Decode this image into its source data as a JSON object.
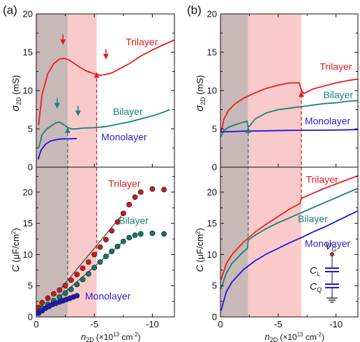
{
  "panels": [
    {
      "label": "(a)",
      "x_axis": {
        "label_main": "n",
        "label_sub": "2D",
        "label_units_prefix": "(×10",
        "label_units_exp": "13",
        "label_units_suffix": " cm",
        "label_units_exp2": "-2",
        "label_units_close": ")",
        "ticks": [
          0,
          -5,
          -10
        ],
        "tick_labels": [
          "0",
          "-5",
          "-10"
        ],
        "range": [
          0,
          -11.9
        ]
      },
      "shaded_regions": [
        {
          "x": [
            0,
            -2.7
          ],
          "color": "#c8b8b8"
        },
        {
          "x": [
            -2.7,
            -5.2
          ],
          "color": "#f9caca"
        }
      ],
      "top": {
        "y_axis": {
          "label_main": "σ",
          "label_sub": "2D",
          "label_units": " (mS)",
          "range": [
            0,
            20
          ],
          "ticks": [
            0,
            5,
            10,
            15,
            20
          ],
          "tick_labels": [
            "0",
            "5",
            "10",
            "15",
            "20"
          ]
        },
        "curve_labels": [
          {
            "text": "Trilayer",
            "color": "#dd1f1f",
            "x": -7.7,
            "y": 15.9
          },
          {
            "text": "Bilayer",
            "color": "#1a8078",
            "x": -6.6,
            "y": 6.8
          },
          {
            "text": "Monolayer",
            "color": "#2c1fcf",
            "x": -5.6,
            "y": 3.5
          }
        ]
      },
      "bottom": {
        "y_axis": {
          "label_main": "C",
          "label_units_prefix": " (μF/cm",
          "label_units_exp": "2",
          "label_units_close": ")",
          "range": [
            0,
            24
          ],
          "ticks": [
            0,
            5,
            10,
            15,
            20
          ],
          "tick_labels": [
            "0",
            "5",
            "10",
            "15",
            "20"
          ]
        },
        "curve_labels": [
          {
            "text": "Trilayer",
            "color": "#dd1f1f",
            "x": -6.2,
            "y": 20.8
          },
          {
            "text": "Bilayer",
            "color": "#1a8078",
            "x": -7.1,
            "y": 14.9
          },
          {
            "text": "Monolayer",
            "color": "#2c1fcf",
            "x": -4.2,
            "y": 2.8
          }
        ]
      }
    },
    {
      "label": "(b)",
      "x_axis": {
        "label_main": "n",
        "label_sub": "2D",
        "label_units_prefix": "(×10",
        "label_units_exp": "13",
        "label_units_suffix": " cm",
        "label_units_exp2": "-2",
        "label_units_close": ")",
        "ticks": [
          0,
          -5,
          -10
        ],
        "tick_labels": [
          "0",
          "-5",
          "-10"
        ],
        "range": [
          0,
          -11.9
        ]
      },
      "shaded_regions": [
        {
          "x": [
            0,
            -2.4
          ],
          "color": "#c8b8b8"
        },
        {
          "x": [
            -2.4,
            -7.0
          ],
          "color": "#f9caca"
        }
      ],
      "top": {
        "y_axis": {
          "label_main": "σ",
          "label_sub": "2D",
          "label_units": " (mS)",
          "range": [
            0,
            20
          ],
          "ticks": [
            0,
            5,
            10,
            15,
            20
          ],
          "tick_labels": [
            "0",
            "5",
            "10",
            "15",
            "20"
          ]
        },
        "curve_labels": [
          {
            "text": "Trilayer",
            "color": "#dd1f1f",
            "x": -8.6,
            "y": 12.7
          },
          {
            "text": "Bilayer",
            "color": "#1a8078",
            "x": -8.9,
            "y": 9.0
          },
          {
            "text": "Monolayer",
            "color": "#2c1fcf",
            "x": -7.3,
            "y": 5.6
          }
        ]
      },
      "bottom": {
        "y_axis": {
          "label_main": "C",
          "label_units_prefix": " (μF/cm",
          "label_units_exp": "2",
          "label_units_close": ")",
          "range": [
            0,
            24
          ],
          "ticks": [
            0,
            5,
            10,
            15,
            20
          ],
          "tick_labels": [
            "0",
            "5",
            "10",
            "15",
            "20"
          ]
        },
        "curve_labels": [
          {
            "text": "Trilayer",
            "color": "#dd1f1f",
            "x": -7.4,
            "y": 21.5
          },
          {
            "text": "Bilayer",
            "color": "#1a8078",
            "x": -6.7,
            "y": 15.2
          },
          {
            "text": "Monolayer",
            "color": "#2c1fcf",
            "x": -7.3,
            "y": 11.2
          }
        ],
        "inset_labels": {
          "gate": "V",
          "gate_sub": "G",
          "cl": "C",
          "cl_sub": "L",
          "cq": "C",
          "cq_sub": "Q"
        }
      }
    }
  ],
  "chart_data": [
    {
      "type": "line",
      "panel": "(a) top",
      "xlabel": "n2D (×10^13 cm^-2)",
      "ylabel": "σ2D (mS)",
      "xlim": [
        0,
        -11.9
      ],
      "ylim": [
        0,
        20
      ],
      "series": [
        {
          "name": "Trilayer",
          "color": "#ee1c1c",
          "x": [
            -0.2,
            -0.5,
            -1.0,
            -1.5,
            -2.0,
            -2.4,
            -2.8,
            -3.2,
            -3.8,
            -4.4,
            -5.0,
            -5.5,
            -6.0,
            -6.5,
            -7.0,
            -8.0,
            -9.0,
            -10.0,
            -11.0,
            -11.9
          ],
          "y": [
            5.5,
            9.5,
            12.2,
            13.5,
            14.1,
            14.2,
            14.0,
            13.6,
            13.0,
            12.5,
            12.2,
            12.0,
            12.1,
            12.3,
            12.7,
            13.5,
            14.5,
            15.3,
            16.0,
            16.6
          ]
        },
        {
          "name": "Bilayer",
          "color": "#138277",
          "x": [
            -0.2,
            -0.5,
            -0.9,
            -1.3,
            -1.7,
            -2.0,
            -2.3,
            -2.7,
            -3.0,
            -3.5,
            -4.0,
            -5.0,
            -6.0,
            -7.0,
            -8.0,
            -9.0,
            -10.0,
            -11.0,
            -11.5
          ],
          "y": [
            2.5,
            4.2,
            5.0,
            5.4,
            5.8,
            5.9,
            5.6,
            5.2,
            5.0,
            5.0,
            5.1,
            5.15,
            5.3,
            5.6,
            5.9,
            6.3,
            6.7,
            7.2,
            7.5
          ]
        },
        {
          "name": "Monolayer",
          "color": "#1f16e0",
          "x": [
            -0.15,
            -0.4,
            -0.8,
            -1.2,
            -1.6,
            -2.0,
            -2.5,
            -3.0,
            -3.5
          ],
          "y": [
            1.0,
            2.2,
            3.0,
            3.4,
            3.55,
            3.65,
            3.7,
            3.7,
            3.75
          ]
        }
      ]
    },
    {
      "type": "scatter",
      "panel": "(a) bottom",
      "xlabel": "n2D (×10^13 cm^-2)",
      "ylabel": "C (μF/cm^2)",
      "xlim": [
        0,
        -11.9
      ],
      "ylim": [
        0,
        24
      ],
      "series": [
        {
          "name": "Trilayer",
          "color": "#cf1818",
          "x": [
            -0.2,
            -0.5,
            -1.0,
            -1.5,
            -2.0,
            -2.5,
            -3.0,
            -3.5,
            -4.0,
            -4.5,
            -5.0,
            -5.5,
            -6.0,
            -6.5,
            -7.0,
            -7.5,
            -8.0,
            -8.5,
            -9.0,
            -10.0,
            -11.0
          ],
          "y": [
            1.5,
            2.3,
            3.0,
            3.7,
            4.3,
            5.0,
            5.9,
            6.8,
            7.8,
            8.8,
            10.0,
            11.2,
            12.4,
            13.8,
            15.2,
            16.6,
            18.0,
            19.2,
            20.0,
            20.5,
            20.4
          ]
        },
        {
          "name": "Bilayer",
          "color": "#12766d",
          "x": [
            -0.2,
            -0.5,
            -1.0,
            -1.5,
            -2.0,
            -2.5,
            -3.0,
            -3.5,
            -4.0,
            -4.5,
            -5.0,
            -5.5,
            -6.0,
            -6.5,
            -7.0,
            -7.5,
            -8.0,
            -8.5,
            -9.0,
            -10.0,
            -11.0
          ],
          "y": [
            0.8,
            1.4,
            2.0,
            2.6,
            3.2,
            3.8,
            4.4,
            5.2,
            6.0,
            6.9,
            7.9,
            8.8,
            9.7,
            10.5,
            11.3,
            12.1,
            12.7,
            13.1,
            13.3,
            13.4,
            13.3
          ]
        },
        {
          "name": "Monolayer",
          "color": "#1c18c8",
          "x": [
            -0.2,
            -0.5,
            -0.8,
            -1.1,
            -1.4,
            -1.7,
            -2.0,
            -2.3,
            -2.6,
            -2.9,
            -3.2,
            -3.5
          ],
          "y": [
            0.6,
            1.0,
            1.4,
            1.7,
            2.0,
            2.2,
            2.4,
            2.6,
            2.8,
            3.0,
            3.2,
            3.4
          ]
        }
      ]
    },
    {
      "type": "line",
      "panel": "(b) top",
      "xlabel": "n2D (×10^13 cm^-2)",
      "ylabel": "σ2D (mS)",
      "xlim": [
        0,
        -11.9
      ],
      "ylim": [
        0,
        20
      ],
      "series": [
        {
          "name": "Trilayer",
          "color": "#ee1c1c",
          "x": [
            -0.05,
            -0.3,
            -0.7,
            -1.2,
            -2.0,
            -3.0,
            -4.0,
            -5.0,
            -6.0,
            -6.8,
            -7.0,
            -7.2,
            -7.6,
            -8.0,
            -9.0,
            -10.0,
            -11.0,
            -11.9
          ],
          "y": [
            4.5,
            6.3,
            7.4,
            8.2,
            9.0,
            9.7,
            10.3,
            10.7,
            11.0,
            11.0,
            10.1,
            9.6,
            9.9,
            10.2,
            10.6,
            11.0,
            11.3,
            11.5
          ]
        },
        {
          "name": "Bilayer",
          "color": "#138277",
          "x": [
            -0.05,
            -0.3,
            -0.7,
            -1.2,
            -1.8,
            -2.3,
            -2.4,
            -2.6,
            -3.0,
            -4.0,
            -5.0,
            -6.0,
            -7.0,
            -8.0,
            -9.0,
            -10.0,
            -11.0,
            -11.9
          ],
          "y": [
            4.0,
            4.8,
            5.2,
            5.5,
            5.8,
            6.0,
            5.2,
            5.5,
            6.3,
            7.1,
            7.5,
            7.7,
            7.9,
            8.1,
            8.3,
            8.4,
            8.6,
            8.7
          ]
        },
        {
          "name": "Monolayer",
          "color": "#1f16e0",
          "x": [
            0,
            -2,
            -4,
            -6,
            -8,
            -10,
            -11.9
          ],
          "y": [
            4.6,
            4.7,
            4.75,
            4.8,
            4.82,
            4.85,
            4.9
          ]
        }
      ]
    },
    {
      "type": "line",
      "panel": "(b) bottom",
      "xlabel": "n2D (×10^13 cm^-2)",
      "ylabel": "C (μF/cm^2)",
      "xlim": [
        0,
        -11.9
      ],
      "ylim": [
        0,
        24
      ],
      "series": [
        {
          "name": "Trilayer",
          "color": "#ee1c1c",
          "x": [
            -0.05,
            -0.5,
            -1.0,
            -2.0,
            -3.0,
            -4.0,
            -5.0,
            -6.0,
            -6.9,
            -7.0,
            -8.0,
            -9.0,
            -10.0,
            -11.0,
            -11.9
          ],
          "y": [
            6.0,
            8.5,
            10.0,
            12.0,
            13.6,
            14.9,
            16.1,
            17.3,
            18.2,
            19.0,
            19.8,
            20.6,
            21.3,
            22.0,
            22.6
          ]
        },
        {
          "name": "Bilayer",
          "color": "#138277",
          "x": [
            -0.05,
            -0.5,
            -1.0,
            -2.0,
            -2.35,
            -2.4,
            -3.0,
            -4.0,
            -5.0,
            -6.0,
            -7.0,
            -8.0,
            -9.0,
            -10.0,
            -11.0,
            -11.9
          ],
          "y": [
            4.5,
            7.0,
            8.6,
            10.5,
            11.0,
            12.3,
            13.1,
            14.2,
            15.1,
            15.9,
            16.7,
            17.5,
            18.3,
            19.1,
            19.9,
            20.6
          ]
        },
        {
          "name": "Monolayer",
          "color": "#1f16e0",
          "x": [
            -0.05,
            -0.5,
            -1.0,
            -2.0,
            -3.0,
            -4.0,
            -5.0,
            -6.0,
            -7.0,
            -8.0,
            -9.0,
            -10.0,
            -11.0,
            -11.9
          ],
          "y": [
            1.0,
            4.0,
            5.6,
            7.6,
            9.0,
            10.1,
            11.0,
            11.9,
            12.7,
            13.6,
            14.4,
            15.3,
            16.2,
            17.0
          ]
        }
      ]
    }
  ]
}
